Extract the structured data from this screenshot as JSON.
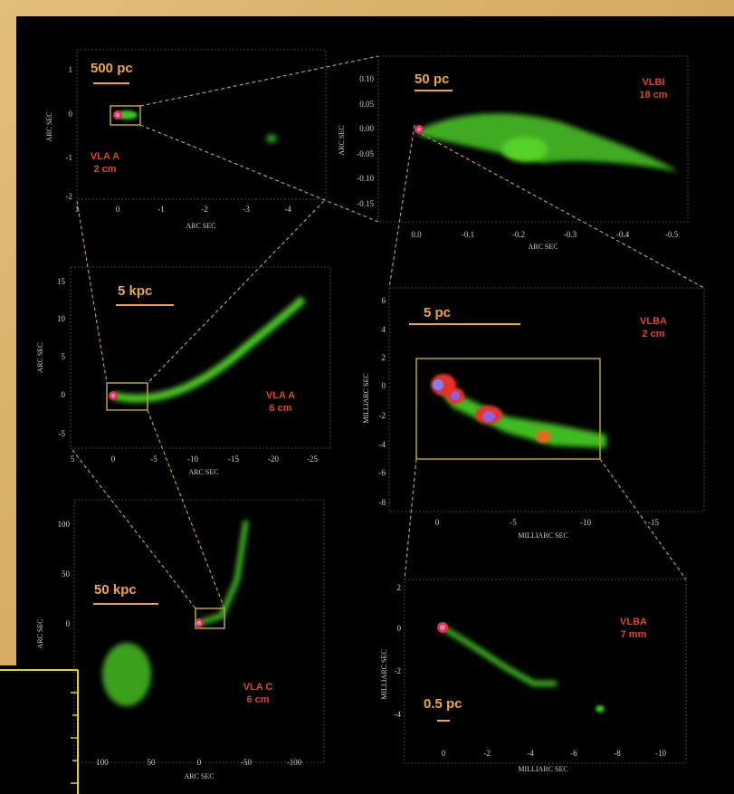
{
  "panels": [
    {
      "scale_bar": "500 pc",
      "label": [
        "VLA A",
        "2 cm"
      ],
      "y_axis_label": "ARC SEC",
      "x_axis_label": "ARC SEC",
      "yticks": [
        "1",
        "0",
        "-1",
        "-2"
      ],
      "xticks": [
        "1",
        "0",
        "-1",
        "-2",
        "-3",
        "-4"
      ]
    },
    {
      "scale_bar": "50 pc",
      "label": [
        "VLBI",
        "18 cm"
      ],
      "y_axis_label": "ARC SEC",
      "x_axis_label": "ARC SEC",
      "yticks": [
        "0.10",
        "0.05",
        "0.00",
        "-0.05",
        "-0.10",
        "-0.15"
      ],
      "xticks": [
        "0.0",
        "-0.1",
        "-0.2",
        "-0.3",
        "-0.4",
        "-0.5"
      ]
    },
    {
      "scale_bar": "5 kpc",
      "label": [
        "VLA A",
        "6 cm"
      ],
      "y_axis_label": "ARC SEC",
      "x_axis_label": "ARC SEC",
      "yticks": [
        "15",
        "10",
        "5",
        "0",
        "-5"
      ],
      "xticks": [
        "5",
        "0",
        "-5",
        "-10",
        "-15",
        "-20",
        "-25"
      ]
    },
    {
      "scale_bar": "5 pc",
      "label": [
        "VLBA",
        "2 cm"
      ],
      "y_axis_label": "MILLIARC SEC",
      "x_axis_label": "MILLIARC SEC",
      "yticks": [
        "6",
        "4",
        "2",
        "0",
        "-2",
        "-4",
        "-6",
        "-8"
      ],
      "xticks": [
        "0",
        "-5",
        "-10",
        "-15"
      ]
    },
    {
      "scale_bar": "50 kpc",
      "label": [
        "VLA C",
        "6 cm"
      ],
      "y_axis_label": "ARC SEC",
      "x_axis_label": "ARC SEC",
      "yticks": [
        "100",
        "50",
        "0"
      ],
      "xticks": [
        "100",
        "50",
        "0",
        "-50",
        "-100"
      ]
    },
    {
      "scale_bar": "0.5 pc",
      "label": [
        "VLBA",
        "7 mm"
      ],
      "y_axis_label": "MILLIARC SEC",
      "x_axis_label": "MILLIARC SEC",
      "yticks": [
        "2",
        "0",
        "-2",
        "-4"
      ],
      "xticks": [
        "0",
        "-2",
        "-4",
        "-6",
        "-8",
        "-10"
      ]
    }
  ]
}
